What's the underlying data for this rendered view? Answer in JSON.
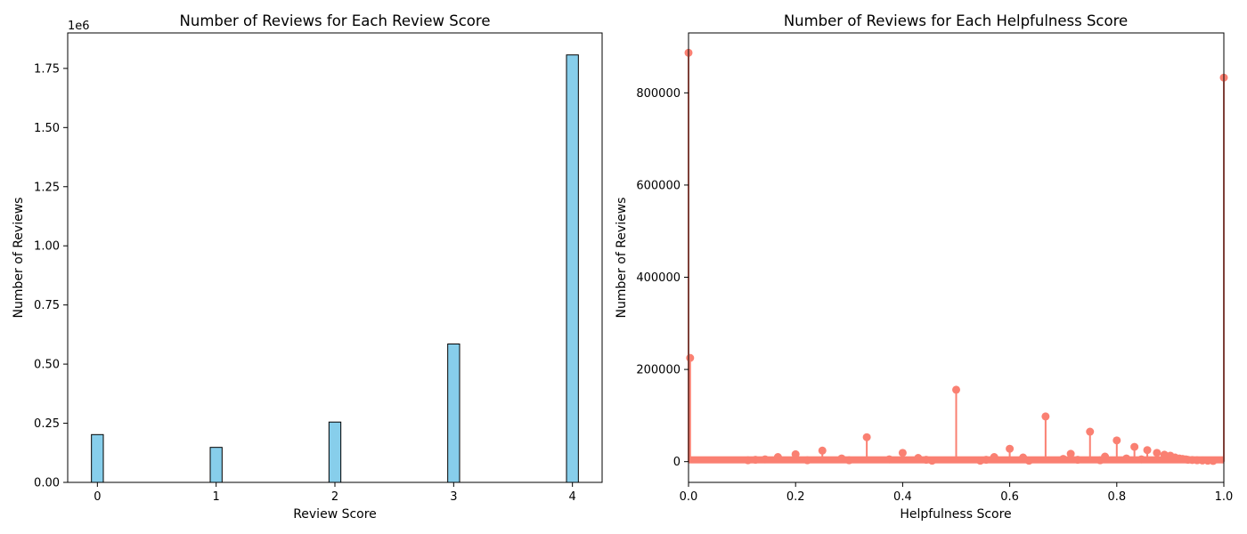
{
  "chart_data": [
    {
      "type": "bar",
      "title": "Number of Reviews for Each Review Score",
      "xlabel": "Review Score",
      "ylabel": "Number of Reviews",
      "offset_label": "1e6",
      "categories": [
        "0",
        "1",
        "2",
        "3",
        "4"
      ],
      "values": [
        202000,
        148000,
        255000,
        585000,
        1807000
      ],
      "xlim": [
        -0.25,
        4.25
      ],
      "ylim": [
        0,
        1900000
      ],
      "y_ticks": [
        0,
        250000,
        500000,
        750000,
        1000000,
        1250000,
        1500000,
        1750000
      ],
      "y_tick_labels": [
        "0.00",
        "0.25",
        "0.50",
        "0.75",
        "1.00",
        "1.25",
        "1.50",
        "1.75"
      ],
      "x_ticks": [
        0,
        1,
        2,
        3,
        4
      ],
      "x_tick_labels": [
        "0",
        "1",
        "2",
        "3",
        "4"
      ],
      "bar_color": "#87ceeb",
      "edge_color": "#000000",
      "grid": false
    },
    {
      "type": "stem",
      "title": "Number of Reviews for Each Helpfulness Score",
      "xlabel": "Helpfulness Score",
      "ylabel": "Number of Reviews",
      "xlim": [
        0,
        1
      ],
      "ylim": [
        -45000,
        930000
      ],
      "x_ticks": [
        0,
        0.2,
        0.4,
        0.6,
        0.8,
        1.0
      ],
      "x_tick_labels": [
        "0.0",
        "0.2",
        "0.4",
        "0.6",
        "0.8",
        "1.0"
      ],
      "y_ticks": [
        0,
        200000,
        400000,
        600000,
        800000
      ],
      "y_tick_labels": [
        "0",
        "200000",
        "400000",
        "600000",
        "800000"
      ],
      "color": "#fa8072",
      "grid": false,
      "points": [
        [
          0.0,
          887000
        ],
        [
          0.003,
          225000
        ],
        [
          0.111,
          3000
        ],
        [
          0.125,
          4000
        ],
        [
          0.143,
          5000
        ],
        [
          0.167,
          10000
        ],
        [
          0.2,
          16000
        ],
        [
          0.222,
          3000
        ],
        [
          0.25,
          24000
        ],
        [
          0.286,
          7000
        ],
        [
          0.3,
          3000
        ],
        [
          0.333,
          53000
        ],
        [
          0.375,
          5000
        ],
        [
          0.4,
          19000
        ],
        [
          0.429,
          8000
        ],
        [
          0.444,
          4000
        ],
        [
          0.455,
          2000
        ],
        [
          0.5,
          156000
        ],
        [
          0.545,
          2000
        ],
        [
          0.556,
          4000
        ],
        [
          0.571,
          10000
        ],
        [
          0.6,
          28000
        ],
        [
          0.625,
          9000
        ],
        [
          0.636,
          2000
        ],
        [
          0.667,
          98000
        ],
        [
          0.7,
          6000
        ],
        [
          0.714,
          17000
        ],
        [
          0.727,
          4000
        ],
        [
          0.75,
          65000
        ],
        [
          0.769,
          3000
        ],
        [
          0.778,
          11000
        ],
        [
          0.8,
          46000
        ],
        [
          0.818,
          7000
        ],
        [
          0.833,
          32000
        ],
        [
          0.846,
          5000
        ],
        [
          0.857,
          25000
        ],
        [
          0.875,
          19000
        ],
        [
          0.889,
          15000
        ],
        [
          0.9,
          13000
        ],
        [
          0.909,
          9000
        ],
        [
          0.917,
          7000
        ],
        [
          0.923,
          6000
        ],
        [
          0.929,
          5000
        ],
        [
          0.933,
          4000
        ],
        [
          0.941,
          3500
        ],
        [
          0.95,
          3000
        ],
        [
          0.96,
          2500
        ],
        [
          0.97,
          2000
        ],
        [
          0.98,
          1500
        ],
        [
          1.0,
          833000
        ]
      ],
      "baseline_dense_x": [
        0.0,
        1.0
      ]
    }
  ]
}
